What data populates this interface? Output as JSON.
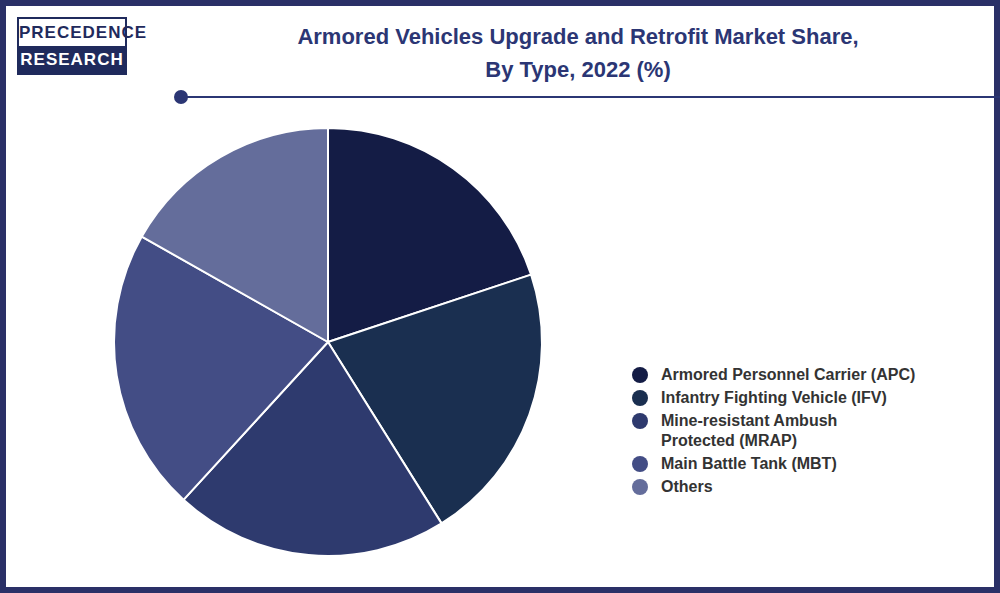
{
  "logo": [
    "PRECEDENCE",
    "RESEARCH"
  ],
  "chart_data": {
    "type": "pie",
    "title": "Armored Vehicles Upgrade and Retrofit Market Share,\nBy Type, 2022 (%)",
    "categories": [
      "Armored Personnel Carrier (APC)",
      "Infantry Fighting Vehicle (IFV)",
      "Mine-resistant Ambush\nProtected (MRAP)",
      "Main Battle Tank (MBT)",
      "Others"
    ],
    "values": [
      19.9,
      21.2,
      20.7,
      21.4,
      16.8
    ],
    "colors": [
      "#141c45",
      "#1a2f50",
      "#2e3a6e",
      "#434d85",
      "#646d9b"
    ],
    "legend": "right"
  }
}
